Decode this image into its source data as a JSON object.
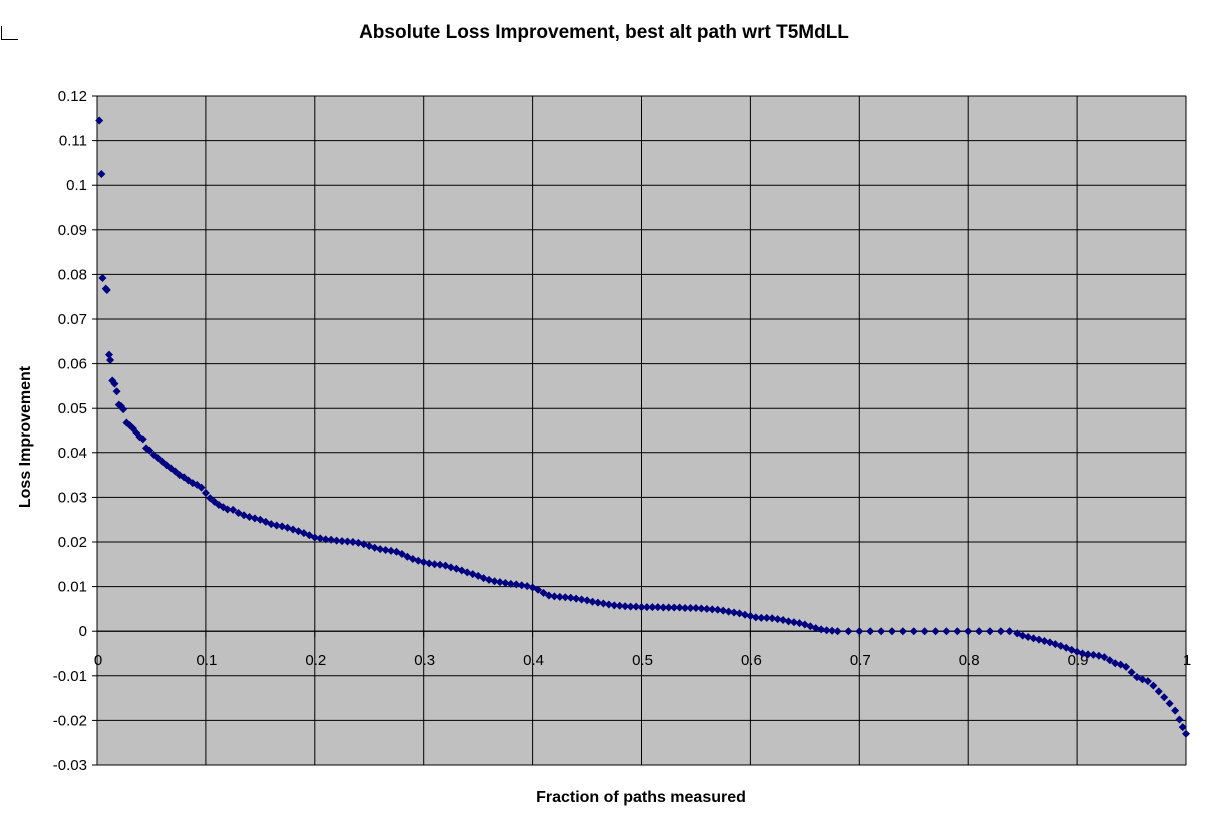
{
  "chart_data": {
    "type": "scatter",
    "title": "Absolute Loss Improvement, best alt path wrt T5MdLL",
    "xlabel": "Fraction of paths measured",
    "ylabel": "Loss Improvement",
    "xlim": [
      0,
      1
    ],
    "ylim": [
      -0.03,
      0.12
    ],
    "x_ticks": [
      0,
      0.1,
      0.2,
      0.3,
      0.4,
      0.5,
      0.6,
      0.7,
      0.8,
      0.9,
      1
    ],
    "x_tick_labels": [
      "0",
      "0.1",
      "0.2",
      "0.3",
      "0.4",
      "0.5",
      "0.6",
      "0.7",
      "0.8",
      "0.9",
      "1"
    ],
    "y_ticks": [
      0.12,
      0.11,
      0.1,
      0.09,
      0.08,
      0.07,
      0.06,
      0.05,
      0.04,
      0.03,
      0.02,
      0.01,
      0,
      -0.01,
      -0.02,
      -0.03
    ],
    "y_tick_labels": [
      "0.12",
      "0.11",
      "0.1",
      "0.09",
      "0.08",
      "0.07",
      "0.06",
      "0.05",
      "0.04",
      "0.03",
      "0.02",
      "0.01",
      "0",
      "-0.01",
      "-0.02",
      "-0.03"
    ],
    "grid": true,
    "plot_background": "#c0c0c0",
    "marker_color": "#000080",
    "marker_shape": "diamond",
    "series": [
      {
        "points": [
          [
            0.002,
            0.1145
          ],
          [
            0.004,
            0.1025
          ],
          [
            0.005,
            0.0792
          ],
          [
            0.008,
            0.0768
          ],
          [
            0.009,
            0.0765
          ],
          [
            0.011,
            0.062
          ],
          [
            0.012,
            0.0608
          ],
          [
            0.014,
            0.0562
          ],
          [
            0.016,
            0.0555
          ],
          [
            0.018,
            0.0538
          ],
          [
            0.02,
            0.0508
          ],
          [
            0.022,
            0.0505
          ],
          [
            0.024,
            0.0498
          ],
          [
            0.027,
            0.0468
          ],
          [
            0.03,
            0.0462
          ],
          [
            0.033,
            0.0455
          ],
          [
            0.036,
            0.0445
          ],
          [
            0.039,
            0.0435
          ],
          [
            0.042,
            0.043
          ],
          [
            0.045,
            0.041
          ],
          [
            0.048,
            0.0405
          ],
          [
            0.052,
            0.0395
          ],
          [
            0.056,
            0.0388
          ],
          [
            0.06,
            0.038
          ],
          [
            0.064,
            0.0372
          ],
          [
            0.068,
            0.0365
          ],
          [
            0.072,
            0.0358
          ],
          [
            0.076,
            0.035
          ],
          [
            0.08,
            0.0345
          ],
          [
            0.084,
            0.0338
          ],
          [
            0.088,
            0.0332
          ],
          [
            0.092,
            0.0328
          ],
          [
            0.096,
            0.0322
          ],
          [
            0.1,
            0.031
          ],
          [
            0.104,
            0.0298
          ],
          [
            0.108,
            0.029
          ],
          [
            0.112,
            0.0283
          ],
          [
            0.116,
            0.0278
          ],
          [
            0.12,
            0.0273
          ],
          [
            0.125,
            0.0272
          ],
          [
            0.13,
            0.0265
          ],
          [
            0.135,
            0.026
          ],
          [
            0.14,
            0.0256
          ],
          [
            0.145,
            0.0253
          ],
          [
            0.15,
            0.025
          ],
          [
            0.155,
            0.0245
          ],
          [
            0.16,
            0.024
          ],
          [
            0.165,
            0.0237
          ],
          [
            0.17,
            0.0235
          ],
          [
            0.175,
            0.0232
          ],
          [
            0.18,
            0.0228
          ],
          [
            0.185,
            0.0224
          ],
          [
            0.19,
            0.022
          ],
          [
            0.195,
            0.0215
          ],
          [
            0.2,
            0.021
          ],
          [
            0.205,
            0.0208
          ],
          [
            0.21,
            0.0206
          ],
          [
            0.215,
            0.0205
          ],
          [
            0.22,
            0.0203
          ],
          [
            0.225,
            0.0202
          ],
          [
            0.23,
            0.0201
          ],
          [
            0.235,
            0.02
          ],
          [
            0.24,
            0.0198
          ],
          [
            0.245,
            0.0195
          ],
          [
            0.25,
            0.0191
          ],
          [
            0.255,
            0.0187
          ],
          [
            0.26,
            0.0184
          ],
          [
            0.265,
            0.0182
          ],
          [
            0.27,
            0.018
          ],
          [
            0.275,
            0.0178
          ],
          [
            0.28,
            0.0173
          ],
          [
            0.285,
            0.0167
          ],
          [
            0.29,
            0.0162
          ],
          [
            0.295,
            0.0158
          ],
          [
            0.3,
            0.0155
          ],
          [
            0.305,
            0.0152
          ],
          [
            0.31,
            0.015
          ],
          [
            0.315,
            0.0149
          ],
          [
            0.32,
            0.0147
          ],
          [
            0.325,
            0.0143
          ],
          [
            0.33,
            0.014
          ],
          [
            0.335,
            0.0136
          ],
          [
            0.34,
            0.0132
          ],
          [
            0.345,
            0.0128
          ],
          [
            0.35,
            0.0124
          ],
          [
            0.355,
            0.0119
          ],
          [
            0.36,
            0.0115
          ],
          [
            0.365,
            0.0112
          ],
          [
            0.37,
            0.011
          ],
          [
            0.375,
            0.0108
          ],
          [
            0.38,
            0.0106
          ],
          [
            0.385,
            0.0105
          ],
          [
            0.39,
            0.0103
          ],
          [
            0.395,
            0.0101
          ],
          [
            0.4,
            0.0098
          ],
          [
            0.405,
            0.0093
          ],
          [
            0.41,
            0.0086
          ],
          [
            0.415,
            0.008
          ],
          [
            0.42,
            0.0078
          ],
          [
            0.425,
            0.0077
          ],
          [
            0.43,
            0.0076
          ],
          [
            0.435,
            0.0075
          ],
          [
            0.44,
            0.0073
          ],
          [
            0.445,
            0.0071
          ],
          [
            0.45,
            0.0069
          ],
          [
            0.455,
            0.0066
          ],
          [
            0.46,
            0.0064
          ],
          [
            0.465,
            0.0062
          ],
          [
            0.47,
            0.006
          ],
          [
            0.475,
            0.0058
          ],
          [
            0.48,
            0.0057
          ],
          [
            0.485,
            0.0056
          ],
          [
            0.49,
            0.0055
          ],
          [
            0.495,
            0.0055
          ],
          [
            0.5,
            0.0054
          ],
          [
            0.505,
            0.0054
          ],
          [
            0.51,
            0.0054
          ],
          [
            0.515,
            0.0054
          ],
          [
            0.52,
            0.0053
          ],
          [
            0.525,
            0.0053
          ],
          [
            0.53,
            0.0053
          ],
          [
            0.535,
            0.0053
          ],
          [
            0.54,
            0.0052
          ],
          [
            0.545,
            0.0052
          ],
          [
            0.55,
            0.0052
          ],
          [
            0.555,
            0.0051
          ],
          [
            0.56,
            0.005
          ],
          [
            0.565,
            0.0049
          ],
          [
            0.57,
            0.0048
          ],
          [
            0.575,
            0.0046
          ],
          [
            0.58,
            0.0044
          ],
          [
            0.585,
            0.0042
          ],
          [
            0.59,
            0.004
          ],
          [
            0.595,
            0.0037
          ],
          [
            0.6,
            0.0034
          ],
          [
            0.605,
            0.0031
          ],
          [
            0.61,
            0.003
          ],
          [
            0.615,
            0.003
          ],
          [
            0.62,
            0.0029
          ],
          [
            0.625,
            0.0027
          ],
          [
            0.63,
            0.0025
          ],
          [
            0.635,
            0.0022
          ],
          [
            0.64,
            0.002
          ],
          [
            0.645,
            0.0018
          ],
          [
            0.65,
            0.0015
          ],
          [
            0.655,
            0.0011
          ],
          [
            0.66,
            0.0007
          ],
          [
            0.665,
            0.0004
          ],
          [
            0.67,
            0.0002
          ],
          [
            0.675,
            0.0001
          ],
          [
            0.68,
            0.0
          ],
          [
            0.69,
            0.0
          ],
          [
            0.7,
            0.0
          ],
          [
            0.71,
            0.0
          ],
          [
            0.72,
            0.0
          ],
          [
            0.73,
            0.0
          ],
          [
            0.74,
            0.0
          ],
          [
            0.75,
            0.0
          ],
          [
            0.76,
            0.0
          ],
          [
            0.77,
            0.0
          ],
          [
            0.78,
            0.0
          ],
          [
            0.79,
            0.0
          ],
          [
            0.8,
            0.0
          ],
          [
            0.81,
            0.0
          ],
          [
            0.82,
            0.0
          ],
          [
            0.83,
            0.0
          ],
          [
            0.838,
            0.0
          ],
          [
            0.845,
            -0.0005
          ],
          [
            0.85,
            -0.001
          ],
          [
            0.855,
            -0.0013
          ],
          [
            0.86,
            -0.0016
          ],
          [
            0.865,
            -0.0019
          ],
          [
            0.87,
            -0.0022
          ],
          [
            0.875,
            -0.0025
          ],
          [
            0.88,
            -0.0029
          ],
          [
            0.885,
            -0.0033
          ],
          [
            0.89,
            -0.0037
          ],
          [
            0.895,
            -0.0042
          ],
          [
            0.9,
            -0.0046
          ],
          [
            0.905,
            -0.005
          ],
          [
            0.91,
            -0.0052
          ],
          [
            0.915,
            -0.0053
          ],
          [
            0.92,
            -0.0055
          ],
          [
            0.925,
            -0.0058
          ],
          [
            0.93,
            -0.0065
          ],
          [
            0.935,
            -0.0072
          ],
          [
            0.94,
            -0.0075
          ],
          [
            0.945,
            -0.008
          ],
          [
            0.95,
            -0.0092
          ],
          [
            0.955,
            -0.0103
          ],
          [
            0.96,
            -0.0108
          ],
          [
            0.965,
            -0.0112
          ],
          [
            0.97,
            -0.0122
          ],
          [
            0.975,
            -0.0135
          ],
          [
            0.98,
            -0.0148
          ],
          [
            0.985,
            -0.0162
          ],
          [
            0.99,
            -0.0178
          ],
          [
            0.994,
            -0.0198
          ],
          [
            0.997,
            -0.0215
          ],
          [
            1.0,
            -0.023
          ]
        ]
      }
    ]
  }
}
